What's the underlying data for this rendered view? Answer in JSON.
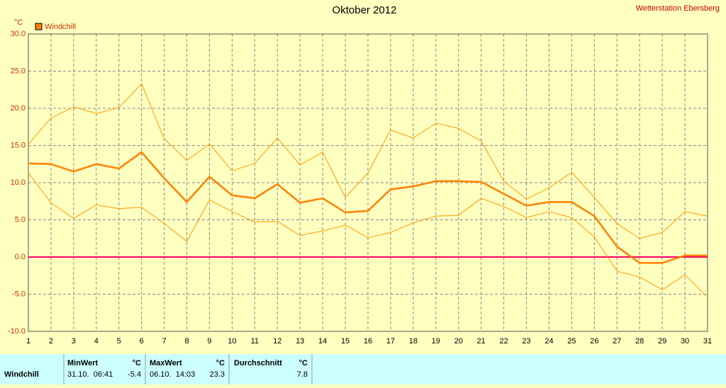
{
  "chart_data": {
    "type": "line",
    "title": "Oktober 2012",
    "station": "Wetterstation Ebersberg",
    "y_unit": "°C",
    "x": [
      1,
      2,
      3,
      4,
      5,
      6,
      7,
      8,
      9,
      10,
      11,
      12,
      13,
      14,
      15,
      16,
      17,
      18,
      19,
      20,
      21,
      22,
      23,
      24,
      25,
      26,
      27,
      28,
      29,
      30,
      31
    ],
    "xlim": [
      1,
      31
    ],
    "xticks": [
      1,
      2,
      3,
      4,
      5,
      6,
      7,
      8,
      9,
      10,
      11,
      12,
      13,
      14,
      15,
      16,
      17,
      18,
      19,
      20,
      21,
      22,
      23,
      24,
      25,
      26,
      27,
      28,
      29,
      30,
      31
    ],
    "ylim": [
      -10,
      30
    ],
    "yticks": [
      {
        "value": -10,
        "label": "-10.0"
      },
      {
        "value": -5,
        "label": "-5.0"
      },
      {
        "value": 0,
        "label": "0.0"
      },
      {
        "value": 5,
        "label": "5.0"
      },
      {
        "value": 10,
        "label": "10.0"
      },
      {
        "value": 15,
        "label": "15.0"
      },
      {
        "value": 20,
        "label": "20.0"
      },
      {
        "value": 25,
        "label": "25.0"
      },
      {
        "value": 30,
        "label": "30.0"
      }
    ],
    "grid": true,
    "zero_line": {
      "value": 0,
      "color": "#ff0066"
    },
    "series": [
      {
        "name": "Windchill",
        "color": "#ff8000",
        "width": 2.5,
        "values": [
          12.6,
          12.5,
          11.5,
          12.5,
          11.9,
          14.1,
          10.6,
          7.4,
          10.8,
          8.3,
          7.9,
          9.8,
          7.3,
          7.9,
          6.0,
          6.2,
          9.1,
          9.5,
          10.2,
          10.2,
          10.1,
          8.5,
          6.9,
          7.4,
          7.4,
          5.5,
          1.4,
          -0.8,
          -0.8,
          0.2,
          0.2
        ]
      },
      {
        "color": "#ff9900",
        "width": 1,
        "values": [
          15.2,
          18.7,
          20.2,
          19.3,
          20.1,
          23.3,
          15.9,
          13.0,
          15.2,
          11.6,
          12.6,
          16.0,
          12.4,
          14.1,
          8.0,
          11.3,
          17.1,
          16.0,
          18.0,
          17.3,
          15.6,
          10.2,
          7.8,
          9.3,
          11.4,
          8.0,
          4.5,
          2.5,
          3.3,
          6.1,
          5.5
        ]
      },
      {
        "color": "#ff9900",
        "width": 1,
        "values": [
          11.3,
          7.3,
          5.2,
          7.0,
          6.5,
          6.7,
          4.5,
          2.1,
          7.7,
          6.1,
          4.7,
          4.8,
          2.9,
          3.5,
          4.3,
          2.6,
          3.3,
          4.6,
          5.5,
          5.6,
          7.9,
          6.8,
          5.3,
          6.1,
          5.3,
          2.7,
          -1.9,
          -2.7,
          -4.4,
          -2.4,
          -5.4
        ]
      }
    ]
  },
  "table": {
    "headers": [
      "MinWert",
      "°C",
      "MaxWert",
      "°C",
      "Durchschnitt",
      "°C"
    ],
    "rows": [
      [
        "Windchill",
        "31.10.  06:41",
        "-5.4",
        "06.10.  14:03",
        "23.3",
        "7.8"
      ]
    ]
  }
}
